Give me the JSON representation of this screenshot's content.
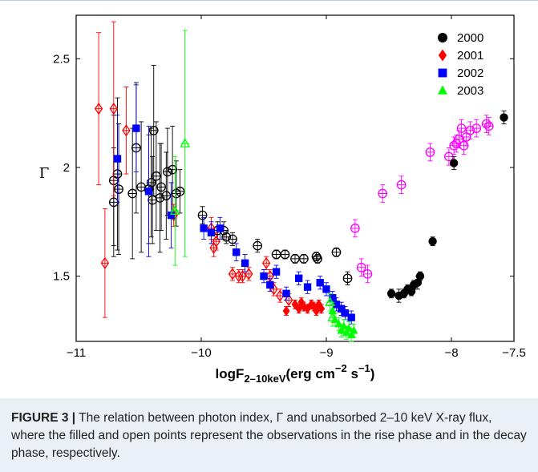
{
  "chart_data": {
    "type": "scatter",
    "xlabel": "logF",
    "xlabel_sub": "2–10keV",
    "xlabel_units": "(erg cm",
    "xlabel_exp1": "−2",
    "xlabel_mid": " s",
    "xlabel_exp2": "−1",
    "xlabel_end": ")",
    "ylabel": "Γ",
    "xlim": [
      -11,
      -7.5
    ],
    "ylim": [
      1.2,
      2.7
    ],
    "xticks": [
      -11,
      -10,
      -9,
      -8,
      -7.5
    ],
    "xtick_labels": [
      "−11",
      "−10",
      "−9",
      "−8",
      "−7.5"
    ],
    "yticks": [
      1.5,
      2,
      2.5
    ],
    "ytick_labels": [
      "1.5",
      "2",
      "2.5"
    ],
    "legend_position": "top-right",
    "series": [
      {
        "name": "2000",
        "marker": "circle",
        "color": "#000000",
        "filled": [
          [
            -8.48,
            1.42,
            0.02
          ],
          [
            -8.42,
            1.41,
            0.03
          ],
          [
            -8.38,
            1.42,
            0.02
          ],
          [
            -8.35,
            1.44,
            0.02
          ],
          [
            -8.32,
            1.43,
            0.02
          ],
          [
            -8.3,
            1.46,
            0.02
          ],
          [
            -8.27,
            1.47,
            0.03
          ],
          [
            -8.25,
            1.5,
            0.02
          ],
          [
            -8.15,
            1.66,
            0.02
          ],
          [
            -7.98,
            2.02,
            0.03
          ],
          [
            -7.58,
            2.23,
            0.03
          ]
        ],
        "open": [
          [
            -10.7,
            1.84,
            0.25
          ],
          [
            -10.7,
            1.94,
            0.3
          ],
          [
            -10.67,
            1.97,
            0.35
          ],
          [
            -10.66,
            1.9,
            0.3
          ],
          [
            -10.55,
            1.88,
            0.3
          ],
          [
            -10.52,
            2.09,
            0.3
          ],
          [
            -10.48,
            1.91,
            0.3
          ],
          [
            -10.42,
            1.9,
            0.25
          ],
          [
            -10.4,
            1.93,
            0.25
          ],
          [
            -10.39,
            1.85,
            0.2
          ],
          [
            -10.38,
            2.17,
            0.3
          ],
          [
            -10.36,
            1.96,
            0.25
          ],
          [
            -10.33,
            1.86,
            0.25
          ],
          [
            -10.32,
            1.91,
            0.2
          ],
          [
            -10.28,
            1.87,
            0.2
          ],
          [
            -10.27,
            1.98,
            0.2
          ],
          [
            -10.23,
            1.99,
            0.2
          ],
          [
            -10.2,
            1.88,
            0.15
          ],
          [
            -10.17,
            1.89,
            0.1
          ],
          [
            -9.99,
            1.78,
            0.04
          ],
          [
            -9.87,
            1.71,
            0.04
          ],
          [
            -9.82,
            1.71,
            0.04
          ],
          [
            -9.8,
            1.68,
            0.03
          ],
          [
            -9.75,
            1.67,
            0.03
          ],
          [
            -9.55,
            1.64,
            0.03
          ],
          [
            -9.4,
            1.6,
            0.02
          ],
          [
            -9.33,
            1.6,
            0.02
          ],
          [
            -9.25,
            1.58,
            0.02
          ],
          [
            -9.18,
            1.58,
            0.02
          ],
          [
            -9.08,
            1.59,
            0.02
          ],
          [
            -9.07,
            1.58,
            0.02
          ],
          [
            -8.92,
            1.61,
            0.02
          ],
          [
            -8.83,
            1.49,
            0.03
          ]
        ]
      },
      {
        "name": "2001",
        "marker": "diamond",
        "color": "#ff0000",
        "filled": [
          [
            -9.32,
            1.34,
            0.02
          ],
          [
            -9.25,
            1.37,
            0.02
          ],
          [
            -9.22,
            1.35,
            0.02
          ],
          [
            -9.2,
            1.38,
            0.02
          ],
          [
            -9.18,
            1.36,
            0.02
          ],
          [
            -9.15,
            1.35,
            0.02
          ],
          [
            -9.12,
            1.37,
            0.02
          ],
          [
            -9.1,
            1.36,
            0.02
          ],
          [
            -9.08,
            1.34,
            0.02
          ],
          [
            -9.06,
            1.37,
            0.02
          ],
          [
            -9.04,
            1.35,
            0.02
          ]
        ],
        "open": [
          [
            -10.82,
            2.27,
            0.35
          ],
          [
            -10.7,
            2.27,
            0.4
          ],
          [
            -10.77,
            1.56,
            0.25
          ],
          [
            -10.6,
            2.17,
            0.2
          ],
          [
            -10.22,
            1.78,
            0.05
          ],
          [
            -9.92,
            1.72,
            0.05
          ],
          [
            -9.9,
            1.63,
            0.04
          ],
          [
            -9.88,
            1.66,
            0.04
          ],
          [
            -9.75,
            1.51,
            0.03
          ],
          [
            -9.7,
            1.5,
            0.03
          ],
          [
            -9.67,
            1.5,
            0.03
          ],
          [
            -9.62,
            1.51,
            0.03
          ],
          [
            -9.48,
            1.56,
            0.03
          ],
          [
            -9.45,
            1.5,
            0.03
          ],
          [
            -9.42,
            1.44,
            0.03
          ],
          [
            -9.37,
            1.41,
            0.03
          ],
          [
            -9.3,
            1.39,
            0.03
          ]
        ]
      },
      {
        "name": "2002",
        "marker": "square",
        "color": "#0000ff",
        "filled": [
          [
            -10.67,
            2.04,
            0.2
          ],
          [
            -10.52,
            2.18,
            0.2
          ],
          [
            -10.42,
            1.89,
            0.3
          ],
          [
            -10.24,
            1.78,
            0.15
          ],
          [
            -9.98,
            1.72,
            0.05
          ],
          [
            -9.92,
            1.7,
            0.05
          ],
          [
            -9.85,
            1.72,
            0.05
          ],
          [
            -9.72,
            1.61,
            0.04
          ],
          [
            -9.65,
            1.56,
            0.04
          ],
          [
            -9.5,
            1.5,
            0.03
          ],
          [
            -9.45,
            1.46,
            0.03
          ],
          [
            -9.4,
            1.52,
            0.03
          ],
          [
            -9.32,
            1.42,
            0.03
          ],
          [
            -9.22,
            1.49,
            0.03
          ],
          [
            -9.15,
            1.45,
            0.03
          ],
          [
            -9.05,
            1.47,
            0.03
          ],
          [
            -9.0,
            1.44,
            0.03
          ],
          [
            -8.95,
            1.4,
            0.03
          ],
          [
            -8.92,
            1.37,
            0.03
          ],
          [
            -8.88,
            1.35,
            0.03
          ],
          [
            -8.85,
            1.33,
            0.03
          ],
          [
            -8.8,
            1.31,
            0.03
          ]
        ],
        "open": []
      },
      {
        "name": "2003",
        "marker": "triangle",
        "color": "#00ff00",
        "filled": [
          [
            -8.95,
            1.34,
            0.03
          ],
          [
            -8.93,
            1.3,
            0.03
          ],
          [
            -8.9,
            1.28,
            0.03
          ],
          [
            -8.88,
            1.25,
            0.03
          ],
          [
            -8.86,
            1.27,
            0.03
          ],
          [
            -8.84,
            1.24,
            0.03
          ],
          [
            -8.82,
            1.26,
            0.03
          ],
          [
            -8.8,
            1.23,
            0.03
          ],
          [
            -8.78,
            1.25,
            0.03
          ]
        ],
        "open": [
          [
            -10.13,
            2.11,
            0.52
          ],
          [
            -10.21,
            1.8,
            0.25
          ],
          [
            -8.97,
            1.38,
            0.04
          ],
          [
            -8.95,
            1.31,
            0.04
          ]
        ]
      },
      {
        "name": "",
        "marker": "circle",
        "color": "#ff00ff",
        "filled": [],
        "open": [
          [
            -8.77,
            1.72,
            0.04
          ],
          [
            -8.72,
            1.54,
            0.04
          ],
          [
            -8.67,
            1.51,
            0.04
          ],
          [
            -8.55,
            1.88,
            0.04
          ],
          [
            -8.4,
            1.92,
            0.04
          ],
          [
            -8.17,
            2.07,
            0.04
          ],
          [
            -8.02,
            2.05,
            0.04
          ],
          [
            -7.98,
            2.1,
            0.04
          ],
          [
            -7.96,
            2.11,
            0.04
          ],
          [
            -7.94,
            2.13,
            0.04
          ],
          [
            -7.92,
            2.18,
            0.04
          ],
          [
            -7.9,
            2.1,
            0.04
          ],
          [
            -7.88,
            2.14,
            0.04
          ],
          [
            -7.85,
            2.17,
            0.04
          ],
          [
            -7.8,
            2.18,
            0.04
          ],
          [
            -7.72,
            2.2,
            0.04
          ],
          [
            -7.7,
            2.19,
            0.04
          ]
        ]
      }
    ]
  },
  "caption": {
    "label": "FIGURE 3 |",
    "text": " The relation between photon index, Γ and unabsorbed 2–10 keV X-ray flux, where the filled and open points represent the observations in the rise phase and in the decay phase, respectively."
  }
}
